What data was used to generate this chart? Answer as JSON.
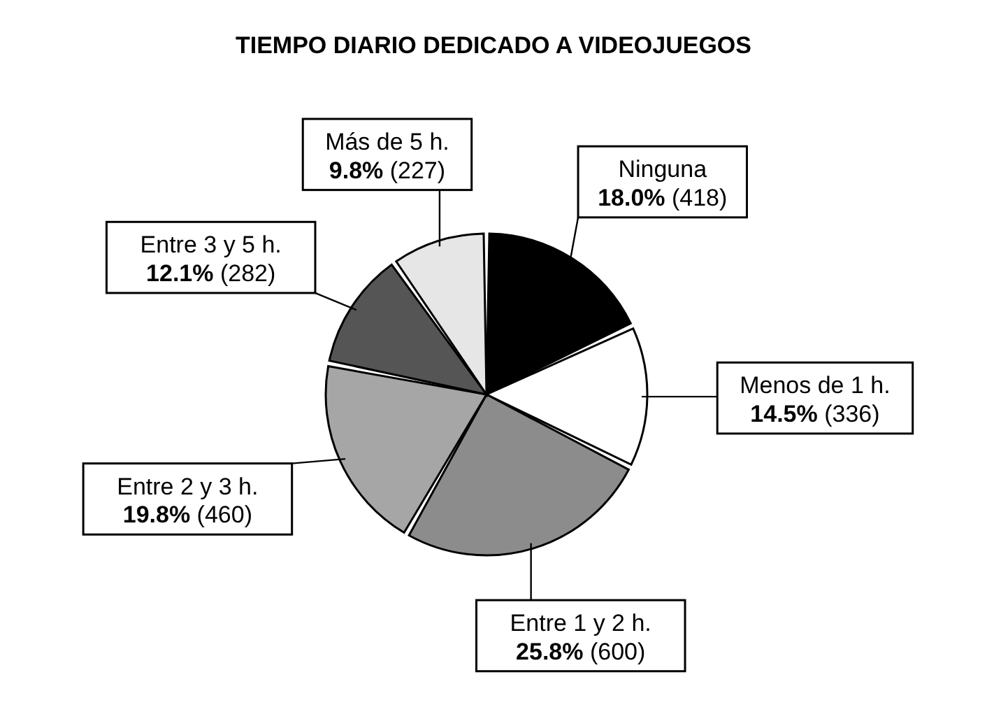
{
  "chart_data": {
    "type": "pie",
    "title": "TIEMPO DIARIO DEDICADO A VIDEOJUEGOS",
    "categories": [
      "Ninguna",
      "Menos de 1 h.",
      "Entre 1 y 2 h.",
      "Entre 2 y 3 h.",
      "Entre 3 y 5 h.",
      "Más de 5 h."
    ],
    "values": [
      418,
      336,
      600,
      460,
      282,
      227
    ],
    "colors": [
      "#000000",
      "#ffffff",
      "#8c8c8c",
      "#a6a6a6",
      "#555555",
      "#e6e6e6"
    ],
    "value_labels": [
      "18.0% (418)",
      "14.5% (336)",
      "25.8% (600)",
      "19.8% (460)",
      "12.1% (282)",
      "9.8% (227)"
    ]
  }
}
